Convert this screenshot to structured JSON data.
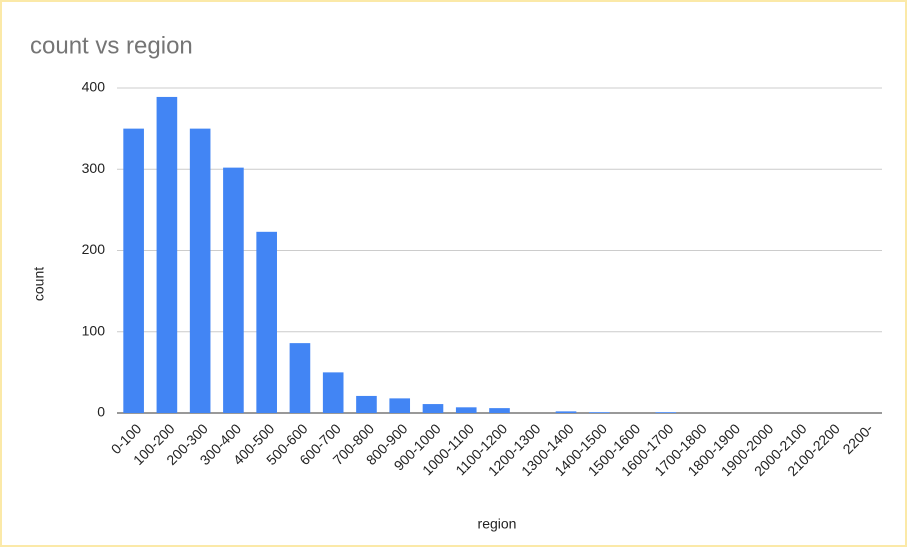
{
  "chart_data": {
    "type": "bar",
    "title": "count vs region",
    "x_label": "region",
    "y_label": "count",
    "categories": [
      "0-100",
      "100-200",
      "200-300",
      "300-400",
      "400-500",
      "500-600",
      "600-700",
      "700-800",
      "800-900",
      "900-1000",
      "1000-1100",
      "1100-1200",
      "1200-1300",
      "1300-1400",
      "1400-1500",
      "1500-1600",
      "1600-1700",
      "1700-1800",
      "1800-1900",
      "1900-2000",
      "2000-2100",
      "2100-2200",
      "2200-"
    ],
    "values": [
      350,
      389,
      350,
      302,
      223,
      86,
      50,
      21,
      18,
      11,
      7,
      6,
      0,
      2,
      1,
      0,
      1,
      0,
      0,
      0,
      0,
      0,
      0
    ],
    "color": "#4285f4",
    "ylim": [
      0,
      400
    ],
    "yticks": [
      0,
      100,
      200,
      300,
      400
    ],
    "grid": true
  }
}
